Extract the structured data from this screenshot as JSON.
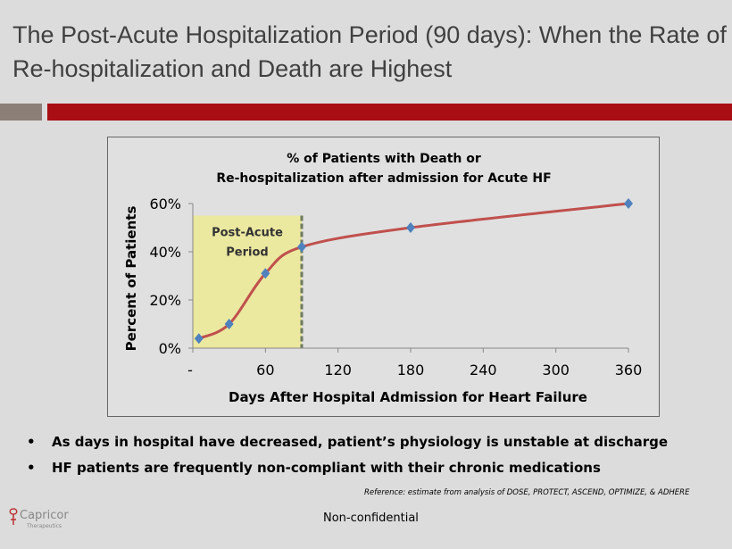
{
  "slide": {
    "title": "The Post-Acute Hospitalization Period (90 days): When the Rate of Re-hospitalization and Death are Highest",
    "bullets": [
      "As days in hospital have decreased, patient’s physiology is unstable at discharge",
      "HF patients are frequently non-compliant with their chronic medications"
    ],
    "bullet_glyph": "•",
    "reference": "Reference: estimate from analysis of DOSE, PROTECT, ASCEND, OPTIMIZE, & ADHERE",
    "footer": "Non-confidential",
    "logo": {
      "name": "Capricor",
      "sub": "Therapeutics"
    }
  },
  "chart_data": {
    "type": "line",
    "title_line1": "% of Patients with Death or",
    "title_line2": "Re-hospitalization after admission for Acute HF",
    "xlabel": "Days After Hospital Admission for Heart Failure",
    "ylabel": "Percent of  Patients",
    "x": [
      5,
      30,
      60,
      90,
      180,
      360
    ],
    "y": [
      4,
      10,
      31,
      42,
      50,
      60
    ],
    "xlim": [
      0,
      360
    ],
    "ylim": [
      0,
      60
    ],
    "xticks": [
      0,
      60,
      120,
      180,
      240,
      300,
      360
    ],
    "xtick_labels": [
      "-",
      "60",
      "120",
      "180",
      "240",
      "300",
      "360"
    ],
    "yticks": [
      0,
      20,
      40,
      60
    ],
    "ytick_labels": [
      "0%",
      "20%",
      "40%",
      "60%"
    ],
    "shaded_region": {
      "label_line1": "Post-Acute",
      "label_line2": "Period",
      "x_range": [
        0,
        90
      ],
      "y_top": 55
    },
    "colors": {
      "line": "#c0504d",
      "marker": "#4f81bd",
      "shade": "#ebe8a0"
    }
  }
}
